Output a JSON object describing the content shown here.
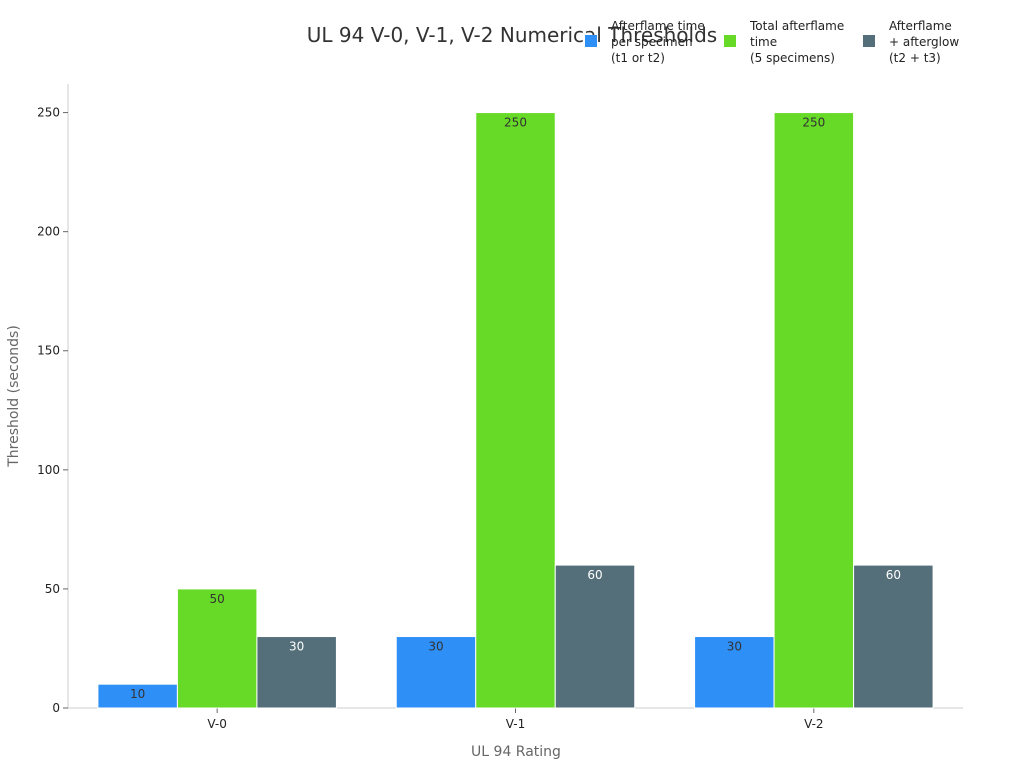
{
  "chart_data": {
    "type": "bar",
    "title": "UL 94 V-0, V-1, V-2 Numerical Thresholds",
    "xlabel": "UL 94 Rating",
    "ylabel": "Threshold (seconds)",
    "categories": [
      "V-0",
      "V-1",
      "V-2"
    ],
    "series": [
      {
        "name": "Afterflame time\nper specimen\n(t1 or t2)",
        "color": "#2e8ff7",
        "label_color": "#333333",
        "values": [
          10,
          30,
          30
        ]
      },
      {
        "name": "Total afterflame\ntime\n(5 specimens)",
        "color": "#66da26",
        "label_color": "#333333",
        "values": [
          50,
          250,
          250
        ]
      },
      {
        "name": "Afterflame\n+ afterglow\n(t2 + t3)",
        "color": "#546e7a",
        "label_color": "#ffffff",
        "values": [
          30,
          60,
          60
        ]
      }
    ],
    "yticks": [
      0,
      50,
      100,
      150,
      200,
      250
    ],
    "ylim": [
      0,
      262
    ],
    "grid": false,
    "legend": "top-right"
  }
}
